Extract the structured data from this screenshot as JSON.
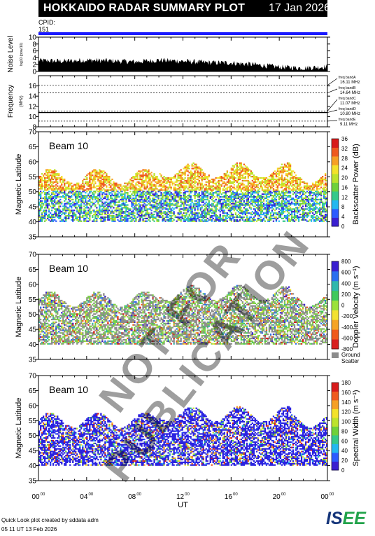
{
  "header": {
    "title": "HOKKAIDO RADAR SUMMARY PLOT",
    "date": "17 Jan 2026"
  },
  "cpid": {
    "label": "CPID:",
    "value": "151"
  },
  "footer": {
    "line1": "Quick Look plot created by sddata adm",
    "line2": "05 11 UT 13 Feb 2026"
  },
  "logo": {
    "part1": "IS",
    "part2": "EE"
  },
  "watermark": "NOT FOR PUBLICATION",
  "colors": {
    "accent_blue": "#1a1aff",
    "ground_scatter": "#8c8c8c"
  },
  "chart_data": [
    {
      "type": "area",
      "ylabel_main": "Noise Level",
      "ylabel_sub": "log10 (pow/10)",
      "ylim": [
        0,
        10
      ],
      "yticks": [
        0,
        2,
        4,
        6,
        8,
        10
      ],
      "x": [
        0,
        2,
        4,
        6,
        8,
        10,
        12,
        14,
        16,
        18,
        20,
        22,
        24
      ],
      "values": [
        3.2,
        3.0,
        3.3,
        3.1,
        2.8,
        3.3,
        3.0,
        2.6,
        2.5,
        2.0,
        1.3,
        1.0,
        1.4
      ]
    },
    {
      "type": "line",
      "ylabel_main": "Frequency",
      "ylabel_sub": "(MHz)",
      "ylim": [
        8,
        18
      ],
      "yticks": [
        8,
        10,
        12,
        14,
        16
      ],
      "bands": [
        {
          "name": "freq bandA",
          "freq_label": "16.11 MHz",
          "value": 16.11
        },
        {
          "name": "freq bandB",
          "freq_label": "14.64 MHz",
          "value": 14.64
        },
        {
          "name": "freq bandC",
          "freq_label": "11.07 MHz",
          "value": 11.07
        },
        {
          "name": "freq bandD",
          "freq_label": "10.80 MHz",
          "value": 10.8
        },
        {
          "name": "freq bandE",
          "freq_label": "9.11 MHz",
          "value": 9.11
        }
      ],
      "operating_frequency": 10.8
    },
    {
      "type": "heatmap",
      "beam_label": "Beam 10",
      "ylabel": "Magnetic Latitude",
      "ylim": [
        35,
        70
      ],
      "yticks": [
        35,
        40,
        45,
        50,
        55,
        60,
        65,
        70
      ],
      "colorbar_label": "Backscatter Power (dB)",
      "colorbar_ticks": [
        "0",
        "4",
        "8",
        "12",
        "16",
        "20",
        "24",
        "28",
        "32",
        "36"
      ],
      "scale": "power"
    },
    {
      "type": "heatmap",
      "beam_label": "Beam 10",
      "ylabel": "Magnetic Latitude",
      "ylim": [
        35,
        70
      ],
      "yticks": [
        35,
        40,
        45,
        50,
        55,
        60,
        65,
        70
      ],
      "colorbar_label": "Doppler Velocity (m s⁻¹)",
      "colorbar_ticks": [
        "-800",
        "-600",
        "-400",
        "-200",
        "0",
        "200",
        "400",
        "600",
        "800"
      ],
      "ground_label": [
        "Ground",
        "Scatter"
      ],
      "scale": "velocity"
    },
    {
      "type": "heatmap",
      "beam_label": "Beam 10",
      "ylabel": "Magnetic Latitude",
      "ylim": [
        35,
        70
      ],
      "yticks": [
        35,
        40,
        45,
        50,
        55,
        60,
        65,
        70
      ],
      "colorbar_label": "Spectral Width (m s⁻¹)",
      "colorbar_ticks": [
        "0",
        "20",
        "40",
        "60",
        "80",
        "100",
        "120",
        "140",
        "160",
        "180"
      ],
      "scale": "width"
    }
  ],
  "xaxis": {
    "label": "UT",
    "ticks": [
      "00",
      "04",
      "08",
      "12",
      "16",
      "20",
      "00"
    ],
    "tick_sup": "00",
    "xlim": [
      0,
      24
    ]
  }
}
